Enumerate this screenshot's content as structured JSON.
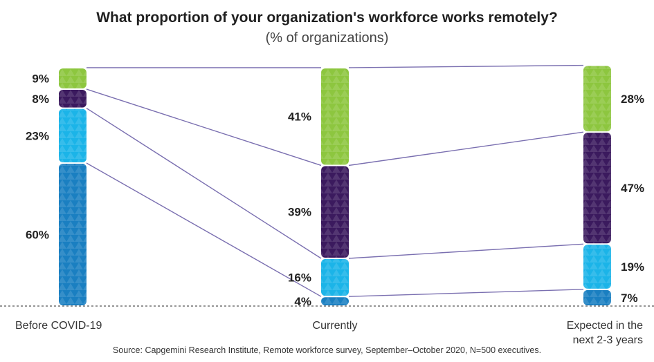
{
  "chart_data": {
    "type": "bar",
    "stacked": true,
    "title": "What proportion of your organization's workforce works remotely?",
    "subtitle": "(% of organizations)",
    "source": "Source: Capgemini Research Institute, Remote workforce survey, September–October 2020, N=500 executives.",
    "categories": [
      "Before COVID-19",
      "Currently",
      "Expected in the next 2-3 years"
    ],
    "category_lines": [
      [
        "Before COVID-19"
      ],
      [
        "Currently"
      ],
      [
        "Expected in the",
        "next 2-3 years"
      ]
    ],
    "series": [
      {
        "values": [
          60,
          4,
          7
        ],
        "labels": [
          "60%",
          "4%",
          "7%"
        ],
        "color": "#1a7fc1"
      },
      {
        "values": [
          23,
          16,
          19
        ],
        "labels": [
          "23%",
          "16%",
          "19%"
        ],
        "color": "#1bb4e8"
      },
      {
        "values": [
          8,
          39,
          47
        ],
        "labels": [
          "8%",
          "39%",
          "47%"
        ],
        "color": "#3b1a5e"
      },
      {
        "values": [
          9,
          41,
          28
        ],
        "labels": [
          "9%",
          "41%",
          "28%"
        ],
        "color": "#8dc63f"
      }
    ],
    "connector_color": "#7a6fb0",
    "ylim": [
      0,
      100
    ],
    "grid": false,
    "legend": "none"
  }
}
